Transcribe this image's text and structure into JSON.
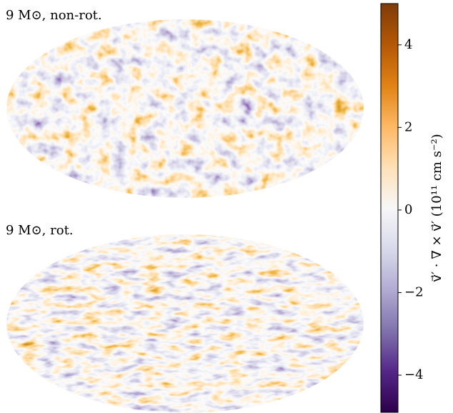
{
  "chart_data": {
    "type": "heatmap",
    "panels": [
      {
        "title": "9 M⊙, non-rot."
      },
      {
        "title": "9 M⊙, rot."
      }
    ],
    "colorbar": {
      "label": "v⃗′ · ∇ × v⃗′ (10¹¹ cm s⁻²)",
      "lim": [
        -4.9,
        5
      ],
      "ticks": [
        {
          "value": -4,
          "label": "−4"
        },
        {
          "value": -2,
          "label": "−2"
        },
        0,
        2,
        4
      ],
      "colors": [
        "#2d004b",
        "#542788",
        "#8073ac",
        "#b2abd2",
        "#d8daeb",
        "#f7f7f7",
        "#fee0b6",
        "#fdb863",
        "#e08214",
        "#b35806",
        "#7f3b08"
      ]
    }
  }
}
